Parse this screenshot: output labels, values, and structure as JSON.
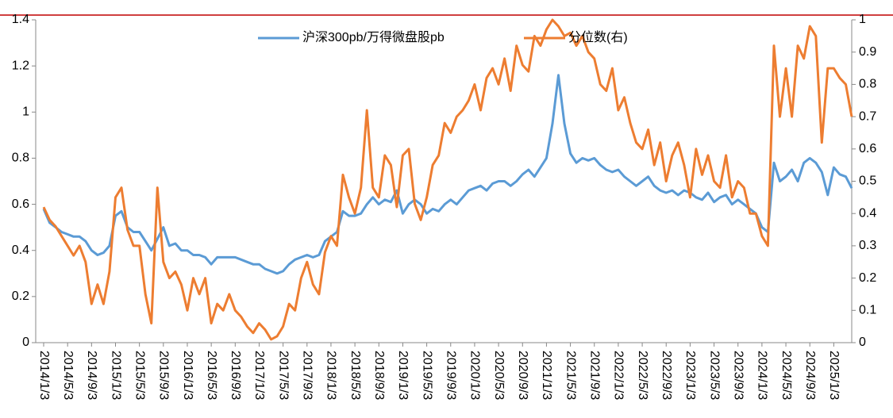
{
  "chart_data": {
    "type": "line",
    "categories": [
      "2014/1/3",
      null,
      null,
      null,
      "2014/5/3",
      null,
      null,
      null,
      "2014/9/3",
      null,
      null,
      null,
      "2015/1/3",
      null,
      null,
      null,
      "2015/5/3",
      null,
      null,
      null,
      "2015/9/3",
      null,
      null,
      null,
      "2016/1/3",
      null,
      null,
      null,
      "2016/5/3",
      null,
      null,
      null,
      "2016/9/3",
      null,
      null,
      null,
      "2017/1/3",
      null,
      null,
      null,
      "2017/5/3",
      null,
      null,
      null,
      "2017/9/3",
      null,
      null,
      null,
      "2018/1/3",
      null,
      null,
      null,
      "2018/5/3",
      null,
      null,
      null,
      "2018/9/3",
      null,
      null,
      null,
      "2019/1/3",
      null,
      null,
      null,
      "2019/5/3",
      null,
      null,
      null,
      "2019/9/3",
      null,
      null,
      null,
      "2020/1/3",
      null,
      null,
      null,
      "2020/5/3",
      null,
      null,
      null,
      "2020/9/3",
      null,
      null,
      null,
      "2021/1/3",
      null,
      null,
      null,
      "2021/5/3",
      null,
      null,
      null,
      "2021/9/3",
      null,
      null,
      null,
      "2022/1/3",
      null,
      null,
      null,
      "2022/5/3",
      null,
      null,
      null,
      "2022/9/3",
      null,
      null,
      null,
      "2023/1/3",
      null,
      null,
      null,
      "2023/5/3",
      null,
      null,
      null,
      "2023/9/3",
      null,
      null,
      null,
      "2024/1/3",
      null,
      null,
      null,
      "2024/5/3",
      null,
      null,
      null,
      "2024/9/3",
      null,
      null,
      null,
      "2025/1/3",
      null,
      null,
      null
    ],
    "series": [
      {
        "name": "沪深300pb/万得微盘股pb",
        "color": "#5b9bd5",
        "values": [
          0.58,
          0.52,
          0.5,
          0.48,
          0.47,
          0.46,
          0.46,
          0.44,
          0.4,
          0.38,
          0.39,
          0.42,
          0.55,
          0.57,
          0.5,
          0.48,
          0.48,
          0.44,
          0.4,
          0.45,
          0.5,
          0.42,
          0.43,
          0.4,
          0.4,
          0.38,
          0.38,
          0.37,
          0.34,
          0.37,
          0.37,
          0.37,
          0.37,
          0.36,
          0.35,
          0.34,
          0.34,
          0.32,
          0.31,
          0.3,
          0.31,
          0.34,
          0.36,
          0.37,
          0.38,
          0.37,
          0.38,
          0.44,
          0.46,
          0.48,
          0.57,
          0.55,
          0.55,
          0.56,
          0.6,
          0.63,
          0.6,
          0.62,
          0.61,
          0.66,
          0.56,
          0.6,
          0.62,
          0.6,
          0.56,
          0.58,
          0.57,
          0.6,
          0.62,
          0.6,
          0.63,
          0.66,
          0.67,
          0.68,
          0.66,
          0.69,
          0.7,
          0.7,
          0.68,
          0.7,
          0.73,
          0.75,
          0.72,
          0.76,
          0.8,
          0.95,
          1.16,
          0.95,
          0.82,
          0.78,
          0.8,
          0.79,
          0.8,
          0.77,
          0.75,
          0.74,
          0.75,
          0.72,
          0.7,
          0.68,
          0.7,
          0.72,
          0.68,
          0.66,
          0.65,
          0.66,
          0.64,
          0.66,
          0.65,
          0.63,
          0.62,
          0.65,
          0.61,
          0.63,
          0.64,
          0.6,
          0.62,
          0.6,
          0.58,
          0.56,
          0.5,
          0.48,
          0.78,
          0.7,
          0.72,
          0.75,
          0.7,
          0.78,
          0.8,
          0.78,
          0.74,
          0.64,
          0.76,
          0.73,
          0.72,
          0.67
        ]
      },
      {
        "name": "分位数(右)",
        "color": "#ed7d31",
        "axis": "y2",
        "values": [
          0.42,
          0.38,
          0.36,
          0.33,
          0.3,
          0.27,
          0.3,
          0.25,
          0.12,
          0.18,
          0.12,
          0.22,
          0.45,
          0.48,
          0.35,
          0.3,
          0.3,
          0.15,
          0.06,
          0.48,
          0.25,
          0.2,
          0.22,
          0.18,
          0.1,
          0.2,
          0.15,
          0.2,
          0.06,
          0.12,
          0.1,
          0.15,
          0.1,
          0.08,
          0.05,
          0.03,
          0.06,
          0.04,
          0.01,
          0.02,
          0.05,
          0.12,
          0.1,
          0.2,
          0.25,
          0.18,
          0.15,
          0.28,
          0.33,
          0.3,
          0.52,
          0.45,
          0.4,
          0.48,
          0.72,
          0.48,
          0.45,
          0.58,
          0.55,
          0.42,
          0.58,
          0.6,
          0.43,
          0.38,
          0.45,
          0.55,
          0.58,
          0.68,
          0.65,
          0.7,
          0.72,
          0.75,
          0.8,
          0.72,
          0.82,
          0.85,
          0.8,
          0.88,
          0.78,
          0.92,
          0.86,
          0.84,
          0.95,
          0.92,
          0.97,
          1.0,
          0.98,
          0.95,
          0.96,
          0.92,
          0.95,
          0.9,
          0.88,
          0.8,
          0.78,
          0.85,
          0.72,
          0.76,
          0.68,
          0.62,
          0.6,
          0.66,
          0.55,
          0.62,
          0.5,
          0.58,
          0.62,
          0.55,
          0.45,
          0.6,
          0.52,
          0.58,
          0.5,
          0.48,
          0.58,
          0.45,
          0.5,
          0.48,
          0.4,
          0.4,
          0.33,
          0.3,
          0.92,
          0.7,
          0.85,
          0.7,
          0.92,
          0.88,
          0.98,
          0.95,
          0.62,
          0.85,
          0.85,
          0.82,
          0.8,
          0.7
        ]
      }
    ],
    "ylim": [
      0,
      1.4
    ],
    "yticks": [
      0,
      0.2,
      0.4,
      0.6,
      0.8,
      1,
      1.2,
      1.4
    ],
    "y2lim": [
      0,
      1
    ],
    "y2ticks": [
      0,
      0.1,
      0.2,
      0.3,
      0.4,
      0.5,
      0.6,
      0.7,
      0.8,
      0.9,
      1
    ],
    "legend": "top"
  }
}
